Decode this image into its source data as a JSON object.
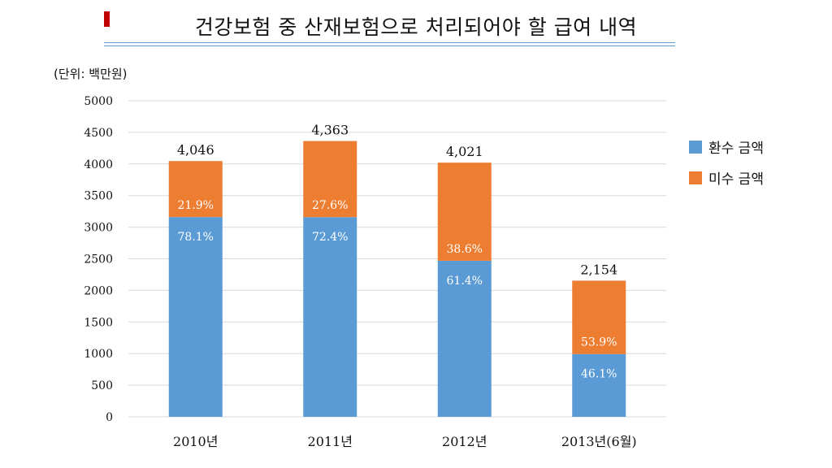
{
  "header": {
    "title": "건강보험 중 산재보험으로 처리되어야 할 급여 내역",
    "unit_label": "(단위: 백만원)"
  },
  "colors": {
    "accent": "#c00000",
    "rule": "#5b9bd5",
    "refund": "#5b9bd5",
    "unpaid": "#ed7d31"
  },
  "chart_data": {
    "type": "bar",
    "stacked": true,
    "title": "건강보험 중 산재보험으로 처리되어야 할 급여 내역",
    "categories": [
      "2010년",
      "2011년",
      "2012년",
      "2013년(6월)"
    ],
    "totals": [
      4046,
      4363,
      4021,
      2154
    ],
    "total_labels": [
      "4,046",
      "4,363",
      "4,021",
      "2,154"
    ],
    "series": [
      {
        "name": "환수 금액",
        "color": "#5b9bd5",
        "values": [
          3160,
          3159,
          2469,
          993
        ],
        "labels": [
          "78.1%",
          "72.4%",
          "61.4%",
          "46.1%"
        ]
      },
      {
        "name": "미수 금액",
        "color": "#ed7d31",
        "values": [
          886,
          1204,
          1552,
          1161
        ],
        "labels": [
          "21.9%",
          "27.6%",
          "38.6%",
          "53.9%"
        ]
      }
    ],
    "yticks": [
      0,
      500,
      1000,
      1500,
      2000,
      2500,
      3000,
      3500,
      4000,
      4500,
      5000
    ],
    "ylim": [
      0,
      5000
    ],
    "grid": true,
    "legend": "right"
  }
}
